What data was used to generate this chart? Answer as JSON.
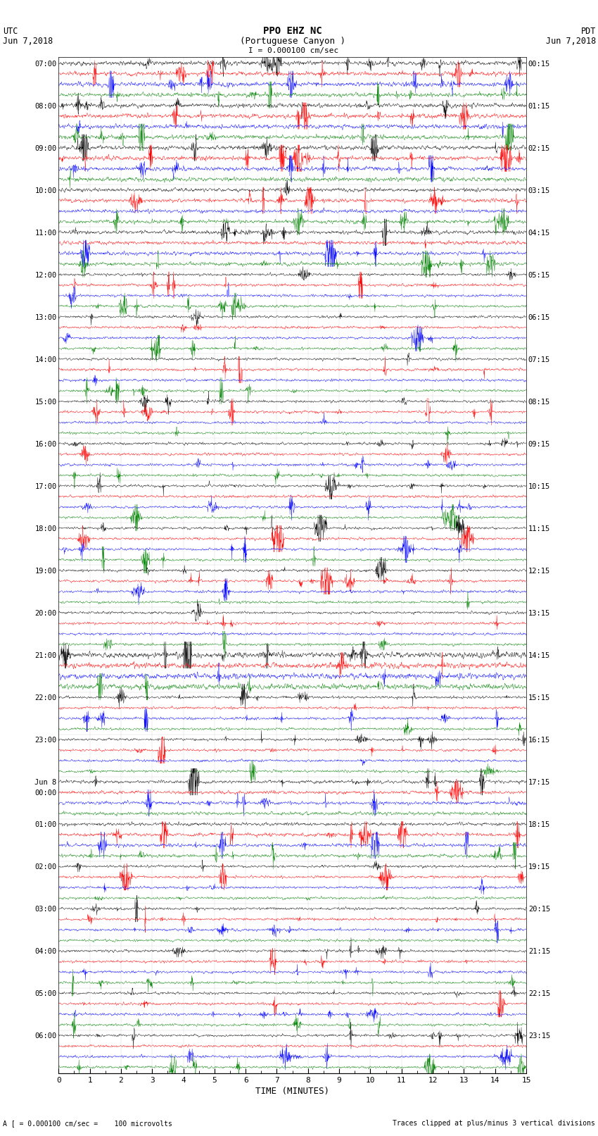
{
  "title_line1": "PPO EHZ NC",
  "title_line2": "(Portuguese Canyon )",
  "title_line3": "I = 0.000100 cm/sec",
  "left_header_line1": "UTC",
  "left_header_line2": "Jun 7,2018",
  "right_header_line1": "PDT",
  "right_header_line2": "Jun 7,2018",
  "xlabel": "TIME (MINUTES)",
  "footer_left": "A [ = 0.000100 cm/sec =    100 microvolts",
  "footer_right": "Traces clipped at plus/minus 3 vertical divisions",
  "utc_labels": {
    "0": "07:00",
    "4": "08:00",
    "8": "09:00",
    "12": "10:00",
    "16": "11:00",
    "20": "12:00",
    "24": "13:00",
    "28": "14:00",
    "32": "15:00",
    "36": "16:00",
    "40": "17:00",
    "44": "18:00",
    "48": "19:00",
    "52": "20:00",
    "56": "21:00",
    "60": "22:00",
    "64": "23:00",
    "68": "Jun 8",
    "69": "00:00",
    "72": "01:00",
    "76": "02:00",
    "80": "03:00",
    "84": "04:00",
    "88": "05:00",
    "92": "06:00"
  },
  "pdt_labels": {
    "0": "00:15",
    "4": "01:15",
    "8": "02:15",
    "12": "03:15",
    "16": "04:15",
    "20": "05:15",
    "24": "06:15",
    "28": "07:15",
    "32": "08:15",
    "36": "09:15",
    "40": "10:15",
    "44": "11:15",
    "48": "12:15",
    "52": "13:15",
    "56": "14:15",
    "60": "15:15",
    "64": "16:15",
    "68": "17:15",
    "72": "18:15",
    "76": "19:15",
    "80": "20:15",
    "84": "21:15",
    "88": "22:15",
    "92": "23:15"
  },
  "colors": [
    "black",
    "red",
    "blue",
    "green"
  ],
  "n_rows": 96,
  "n_minutes": 15,
  "samples_per_row": 2000,
  "row_amplitude": 0.42,
  "background_color": "#ffffff",
  "linewidth": 0.3
}
